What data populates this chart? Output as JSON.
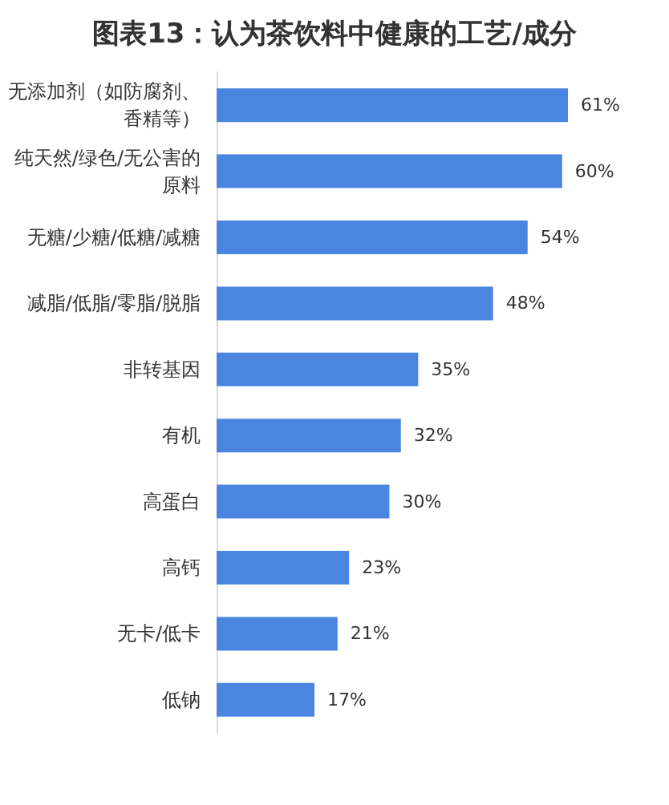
{
  "chart_data": {
    "type": "bar",
    "orientation": "horizontal",
    "title": "图表13：认为茶饮料中健康的工艺/成分",
    "categories": [
      "无添加剂（如防腐剂、香精等）",
      "纯天然/绿色/无公害的原料",
      "无糖/少糖/低糖/减糖",
      "减脂/低脂/零脂/脱脂",
      "非转基因",
      "有机",
      "高蛋白",
      "高钙",
      "无卡/低卡",
      "低钠"
    ],
    "values": [
      61,
      60,
      54,
      48,
      35,
      32,
      30,
      23,
      21,
      17
    ],
    "value_labels": [
      "61%",
      "60%",
      "54%",
      "48%",
      "35%",
      "32%",
      "30%",
      "23%",
      "21%",
      "17%"
    ],
    "color": "#4a86e0"
  }
}
